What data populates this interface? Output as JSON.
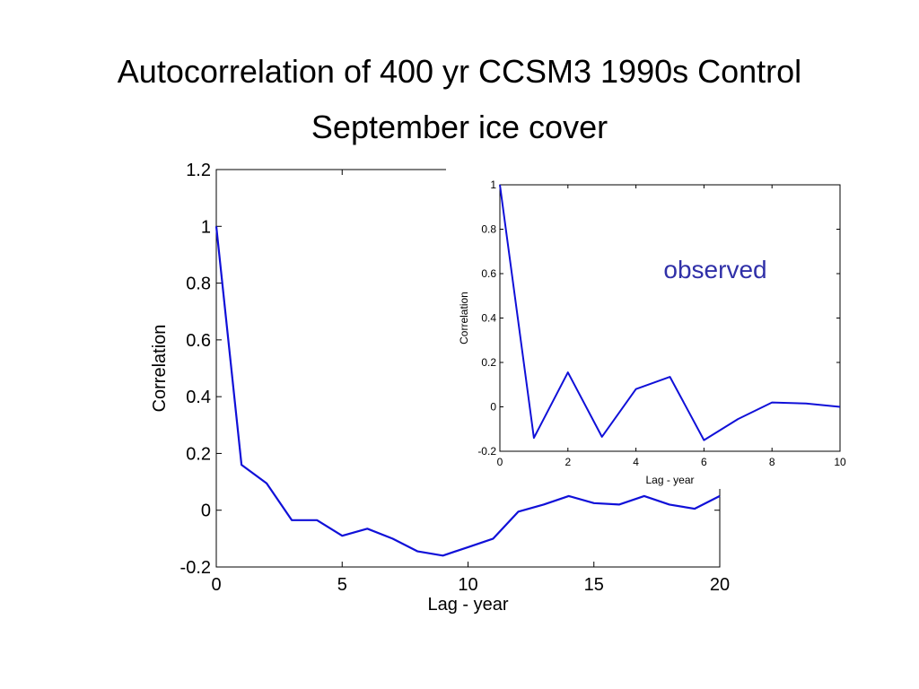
{
  "slide": {
    "title_line1": "Autocorrelation of 400 yr CCSM3 1990s Control",
    "title_line2": "September ice cover"
  },
  "colors": {
    "line": "#1010d8",
    "annotation": "#3030a8",
    "axis": "#000000"
  },
  "chart_data": [
    {
      "type": "line",
      "name": "main",
      "title": "",
      "xlabel": "Lag - year",
      "ylabel": "Correlation",
      "xlim": [
        0,
        20
      ],
      "ylim": [
        -0.2,
        1.2
      ],
      "xticks": [
        0,
        5,
        10,
        15,
        20
      ],
      "yticks": [
        -0.2,
        0,
        0.2,
        0.4,
        0.6,
        0.8,
        1,
        1.2
      ],
      "xtick_labels": [
        "0",
        "5",
        "10",
        "15",
        "20"
      ],
      "ytick_labels": [
        "-0.2",
        "0",
        "0.2",
        "0.4",
        "0.6",
        "0.8",
        "1",
        "1.2"
      ],
      "grid": false,
      "series": [
        {
          "x": [
            0,
            1,
            2,
            3,
            4,
            5,
            6,
            7,
            8,
            9,
            10,
            11,
            12,
            13,
            14,
            15,
            16,
            17,
            18,
            19,
            20
          ],
          "values": [
            1.0,
            0.16,
            0.095,
            -0.035,
            -0.035,
            -0.09,
            -0.065,
            -0.1,
            -0.145,
            -0.16,
            -0.13,
            -0.1,
            -0.005,
            0.02,
            0.05,
            0.025,
            0.02,
            0.05,
            0.02,
            0.005,
            0.05
          ]
        }
      ]
    },
    {
      "type": "line",
      "name": "inset",
      "title": "",
      "xlabel": "Lag - year",
      "ylabel": "Correlation",
      "xlim": [
        0,
        10
      ],
      "ylim": [
        -0.2,
        1
      ],
      "xticks": [
        0,
        2,
        4,
        6,
        8,
        10
      ],
      "yticks": [
        -0.2,
        0,
        0.2,
        0.4,
        0.6,
        0.8,
        1
      ],
      "xtick_labels": [
        "0",
        "2",
        "4",
        "6",
        "8",
        "10"
      ],
      "ytick_labels": [
        "-0.2",
        "0",
        "0.2",
        "0.4",
        "0.6",
        "0.8",
        "1"
      ],
      "grid": false,
      "annotation": "observed",
      "series": [
        {
          "x": [
            0,
            1,
            2,
            3,
            4,
            5,
            6,
            7,
            8,
            9,
            10
          ],
          "values": [
            1.0,
            -0.14,
            0.155,
            -0.135,
            0.08,
            0.135,
            -0.15,
            -0.055,
            0.02,
            0.015,
            0.0
          ]
        }
      ]
    }
  ]
}
